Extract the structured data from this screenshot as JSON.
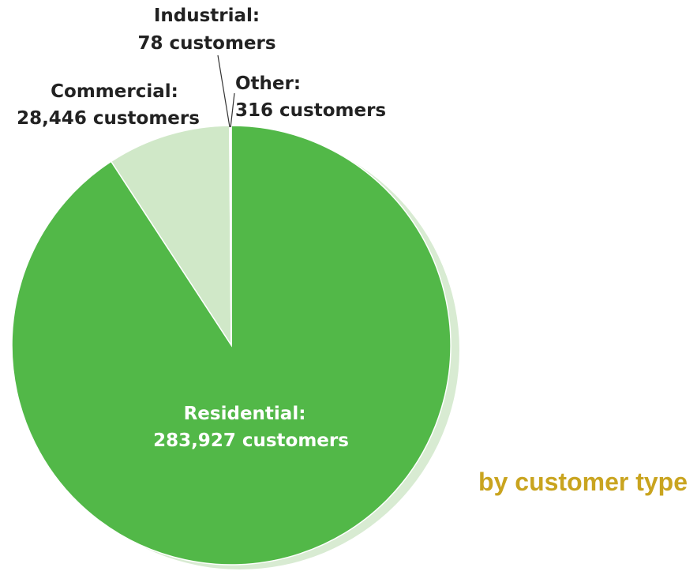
{
  "chart_data": {
    "type": "pie",
    "title": "",
    "subtitle": "by customer type",
    "slices": [
      {
        "label": "Residential",
        "value": 283927,
        "value_text": "283,927 customers",
        "color": "#52b848"
      },
      {
        "label": "Commercial",
        "value": 28446,
        "value_text": "28,446 customers",
        "color": "#d0e8c8"
      },
      {
        "label": "Industrial",
        "value": 78,
        "value_text": "78 customers",
        "color": "#e4f0de"
      },
      {
        "label": "Other",
        "value": 316,
        "value_text": "316 customers",
        "color": "#f6faf4"
      }
    ],
    "start": "12 o'clock",
    "direction": "counterclockwise from Residential"
  },
  "labels": {
    "residential": {
      "name": "Residential:",
      "count": "283,927 customers"
    },
    "commercial": {
      "name": "Commercial:",
      "count": "28,446 customers"
    },
    "industrial": {
      "name": "Industrial:",
      "count": "78 customers"
    },
    "other": {
      "name": "Other:",
      "count": "316 customers"
    }
  },
  "colors": {
    "caption": "#c9a41f",
    "shadow": "#d8ebd2",
    "leader_line": "#333333",
    "slice_outline": "#ffffff"
  }
}
